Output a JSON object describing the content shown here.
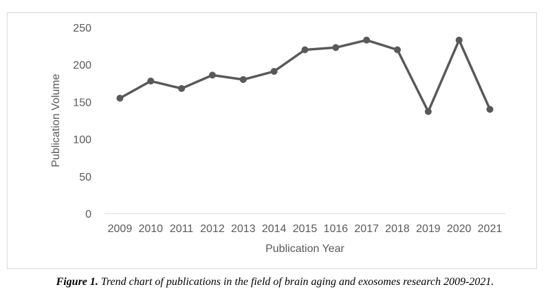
{
  "chart_data": {
    "type": "line",
    "title": "",
    "xlabel": "Publication Year",
    "ylabel": "Publication Volume",
    "categories": [
      "2009",
      "2010",
      "2011",
      "2012",
      "2013",
      "2014",
      "2015",
      "1016",
      "2017",
      "2018",
      "2019",
      "2020",
      "2021"
    ],
    "series": [
      {
        "values": [
          155,
          178,
          168,
          186,
          180,
          191,
          220,
          223,
          233,
          220,
          137,
          233,
          140
        ]
      }
    ],
    "ylim": [
      0,
      250
    ],
    "yticks": [
      0,
      50,
      100,
      150,
      200,
      250
    ],
    "grid": false,
    "legend": "none",
    "colors": {
      "line": "#595959",
      "marker": "#595959",
      "axis": "#d9d9d9",
      "text": "#595959"
    }
  },
  "caption": {
    "label": "Figure 1.",
    "text": " Trend chart of publications in the field of brain aging and exosomes research 2009-2021."
  }
}
